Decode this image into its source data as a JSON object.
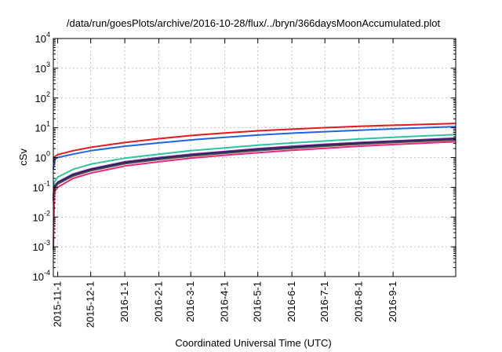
{
  "chart_data": {
    "type": "line",
    "title": "/data/run/goesPlots/archive/2016-10-28/flux/../bryn/366daysMoonAccumulated.plot",
    "xlabel": "Coordinated Universal Time (UTC)",
    "ylabel": "cSv",
    "yscale": "log",
    "ylim": [
      0.0001,
      10000
    ],
    "xlim": [
      "2015-10-28",
      "2016-10-28"
    ],
    "grid": true,
    "y_ticks": [
      {
        "value": 0.0001,
        "mantissa": "10",
        "exp": "-4"
      },
      {
        "value": 0.001,
        "mantissa": "10",
        "exp": "-3"
      },
      {
        "value": 0.01,
        "mantissa": "10",
        "exp": "-2"
      },
      {
        "value": 0.1,
        "mantissa": "10",
        "exp": "-1"
      },
      {
        "value": 1,
        "mantissa": "10",
        "exp": "0"
      },
      {
        "value": 10,
        "mantissa": "10",
        "exp": "1"
      },
      {
        "value": 100,
        "mantissa": "10",
        "exp": "2"
      },
      {
        "value": 1000,
        "mantissa": "10",
        "exp": "3"
      },
      {
        "value": 10000,
        "mantissa": "10",
        "exp": "4"
      }
    ],
    "x_ticks": [
      {
        "date": "2015-11-01",
        "label": "2015-11-1"
      },
      {
        "date": "2015-12-01",
        "label": "2015-12-1"
      },
      {
        "date": "2016-01-01",
        "label": "2016-1-1"
      },
      {
        "date": "2016-02-01",
        "label": "2016-2-1"
      },
      {
        "date": "2016-03-01",
        "label": "2016-3-1"
      },
      {
        "date": "2016-04-01",
        "label": "2016-4-1"
      },
      {
        "date": "2016-05-01",
        "label": "2016-5-1"
      },
      {
        "date": "2016-06-01",
        "label": "2016-6-1"
      },
      {
        "date": "2016-07-01",
        "label": "2016-7-1"
      },
      {
        "date": "2016-08-01",
        "label": "2016-8-1"
      },
      {
        "date": "2016-09-01",
        "label": "2016-9-1"
      }
    ],
    "series": [
      {
        "color": "#e41a1c",
        "x": [
          "2015-10-28",
          "2015-10-29",
          "2015-11-01",
          "2015-11-15",
          "2015-12-01",
          "2016-01-01",
          "2016-02-01",
          "2016-03-01",
          "2016-04-01",
          "2016-05-01",
          "2016-06-01",
          "2016-07-01",
          "2016-08-01",
          "2016-09-01",
          "2016-10-28"
        ],
        "y": [
          0.7,
          1.05,
          1.25,
          1.7,
          2.2,
          3.2,
          4.3,
          5.5,
          6.7,
          7.9,
          9.0,
          10.1,
          11.2,
          12.2,
          14.0
        ]
      },
      {
        "color": "#2166e0",
        "x": [
          "2015-10-28",
          "2015-10-29",
          "2015-11-01",
          "2015-11-15",
          "2015-12-01",
          "2016-01-01",
          "2016-02-01",
          "2016-03-01",
          "2016-04-01",
          "2016-05-01",
          "2016-06-01",
          "2016-07-01",
          "2016-08-01",
          "2016-09-01",
          "2016-10-28"
        ],
        "y": [
          0.4,
          0.85,
          1.0,
          1.3,
          1.7,
          2.4,
          3.1,
          3.9,
          4.8,
          5.7,
          6.6,
          7.4,
          8.3,
          9.2,
          11.0
        ]
      },
      {
        "color": "#2ec4a0",
        "x": [
          "2015-10-28",
          "2015-10-29",
          "2015-11-01",
          "2015-11-15",
          "2015-12-01",
          "2016-01-01",
          "2016-02-01",
          "2016-03-01",
          "2016-04-01",
          "2016-05-01",
          "2016-06-01",
          "2016-07-01",
          "2016-08-01",
          "2016-09-01",
          "2016-10-28"
        ],
        "y": [
          0.05,
          0.15,
          0.22,
          0.4,
          0.6,
          0.95,
          1.3,
          1.7,
          2.1,
          2.6,
          3.1,
          3.6,
          4.2,
          4.8,
          5.9
        ]
      },
      {
        "color": "#7b3294",
        "x": [
          "2015-10-28",
          "2015-10-29",
          "2015-11-01",
          "2015-11-15",
          "2015-12-01",
          "2016-01-01",
          "2016-02-01",
          "2016-03-01",
          "2016-04-01",
          "2016-05-01",
          "2016-06-01",
          "2016-07-01",
          "2016-08-01",
          "2016-09-01",
          "2016-10-28"
        ],
        "y": [
          0.05,
          0.11,
          0.15,
          0.28,
          0.42,
          0.72,
          1.0,
          1.3,
          1.6,
          2.0,
          2.4,
          2.8,
          3.2,
          3.6,
          4.5
        ]
      },
      {
        "color": "#1a1a60",
        "x": [
          "2015-10-28",
          "2015-10-29",
          "2015-11-01",
          "2015-11-15",
          "2015-12-01",
          "2016-01-01",
          "2016-02-01",
          "2016-03-01",
          "2016-04-01",
          "2016-05-01",
          "2016-06-01",
          "2016-07-01",
          "2016-08-01",
          "2016-09-01",
          "2016-10-28"
        ],
        "y": [
          0.04,
          0.1,
          0.14,
          0.26,
          0.39,
          0.67,
          0.93,
          1.2,
          1.5,
          1.85,
          2.2,
          2.6,
          3.0,
          3.4,
          4.2
        ]
      },
      {
        "color": "#4a4a4a",
        "x": [
          "2015-10-28",
          "2015-10-29",
          "2015-11-01",
          "2015-11-15",
          "2015-12-01",
          "2016-01-01",
          "2016-02-01",
          "2016-03-01",
          "2016-04-01",
          "2016-05-01",
          "2016-06-01",
          "2016-07-01",
          "2016-08-01",
          "2016-09-01",
          "2016-10-28"
        ],
        "y": [
          0.035,
          0.09,
          0.13,
          0.24,
          0.36,
          0.62,
          0.86,
          1.12,
          1.4,
          1.72,
          2.05,
          2.4,
          2.8,
          3.2,
          3.9
        ]
      },
      {
        "color": "#e8297a",
        "x": [
          "2015-10-28",
          "2015-10-29",
          "2015-11-01",
          "2015-11-15",
          "2015-12-01",
          "2016-01-01",
          "2016-02-01",
          "2016-03-01",
          "2016-04-01",
          "2016-05-01",
          "2016-06-01",
          "2016-07-01",
          "2016-08-01",
          "2016-09-01",
          "2016-10-28"
        ],
        "y": [
          0.0008,
          0.07,
          0.1,
          0.2,
          0.3,
          0.52,
          0.72,
          0.95,
          1.2,
          1.45,
          1.75,
          2.05,
          2.4,
          2.75,
          3.4
        ]
      }
    ]
  }
}
